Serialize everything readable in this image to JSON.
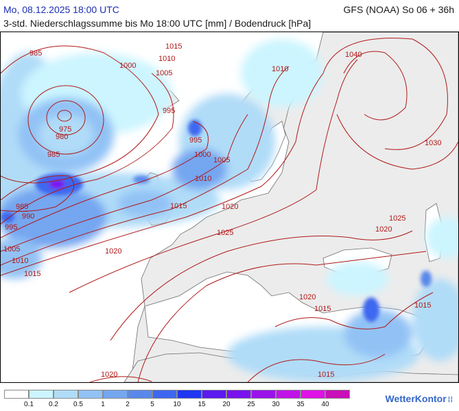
{
  "header": {
    "datetime": "Mo, 08.12.2025 18:00 UTC",
    "model_run": "GFS (NOAA) So 06 + 36h",
    "description": "3-std. Niederschlagssumme bis Mo 18:00 UTC [mm] / Bodendruck [hPa]"
  },
  "isobars": {
    "color": "#b01818",
    "labels": [
      "985",
      "1010",
      "1015",
      "1000",
      "1005",
      "995",
      "975",
      "980",
      "985",
      "1010",
      "1040",
      "995",
      "1000",
      "1005",
      "1030",
      "1010",
      "985",
      "990",
      "995",
      "1015",
      "1020",
      "1025",
      "1020",
      "1025",
      "1005",
      "1010",
      "1015",
      "1020",
      "1020",
      "1015",
      "1015",
      "1020",
      "1015"
    ]
  },
  "legend": {
    "colors": [
      "#ffffff",
      "#ccf5ff",
      "#b0dcf8",
      "#92c2f5",
      "#75a6f0",
      "#5a88ea",
      "#3d67f0",
      "#1f35f2",
      "#5a1af0",
      "#7a12ee",
      "#9a12ea",
      "#c013e8",
      "#e012e6",
      "#c80fb8"
    ],
    "labels": [
      "0.1",
      "0.2",
      "0.5",
      "1",
      "2",
      "5",
      "10",
      "15",
      "20",
      "25",
      "30",
      "35",
      "40"
    ]
  },
  "brand": {
    "name": "WetterKontor",
    "mark": "⁞⁞"
  }
}
